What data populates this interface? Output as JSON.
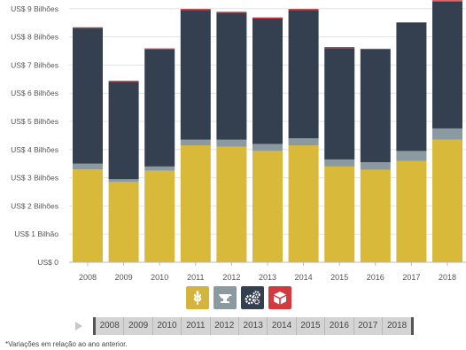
{
  "chart_data": {
    "type": "bar",
    "stacked": true,
    "categories": [
      "2008",
      "2009",
      "2010",
      "2011",
      "2012",
      "2013",
      "2014",
      "2015",
      "2016",
      "2017",
      "2018"
    ],
    "y_tick_labels": [
      "US$ 0",
      "US$ 1 Bilhão",
      "US$ 2 Bilhões",
      "US$ 3 Bilhões",
      "US$ 4 Bilhões",
      "US$ 5 Bilhões",
      "US$ 6 Bilhões",
      "US$ 7 Bilhões",
      "US$ 8 Bilhões",
      "US$ 9 Bilhões"
    ],
    "ylim": [
      0,
      9.2
    ],
    "grid": true,
    "series": [
      {
        "color": "#d9b93a",
        "values": [
          3.3,
          2.85,
          3.25,
          4.15,
          4.1,
          3.95,
          4.15,
          3.4,
          3.28,
          3.6,
          4.35
        ]
      },
      {
        "color": "#8a9aa0",
        "values": [
          0.2,
          0.1,
          0.15,
          0.2,
          0.25,
          0.25,
          0.25,
          0.25,
          0.27,
          0.35,
          0.4
        ]
      },
      {
        "color": "#343f4f",
        "values": [
          4.8,
          3.45,
          4.15,
          4.6,
          4.5,
          4.45,
          4.55,
          3.95,
          4.0,
          4.55,
          4.5
        ]
      },
      {
        "color": "#c7343b",
        "values": [
          0.04,
          0.04,
          0.04,
          0.04,
          0.04,
          0.04,
          0.04,
          0.04,
          0.03,
          0.02,
          0.05
        ]
      }
    ]
  },
  "legend": [
    {
      "icon": "wheat-icon",
      "color": "#d4b43c"
    },
    {
      "icon": "anvil-icon",
      "color": "#8a9aa0"
    },
    {
      "icon": "gears-icon",
      "color": "#343f4f"
    },
    {
      "icon": "box-icon",
      "color": "#d23a3f"
    }
  ],
  "timeline": {
    "years": [
      "2008",
      "2009",
      "2010",
      "2011",
      "2012",
      "2013",
      "2014",
      "2015",
      "2016",
      "2017",
      "2018"
    ]
  },
  "footnote": "*Variações em relação ao ano anterior."
}
